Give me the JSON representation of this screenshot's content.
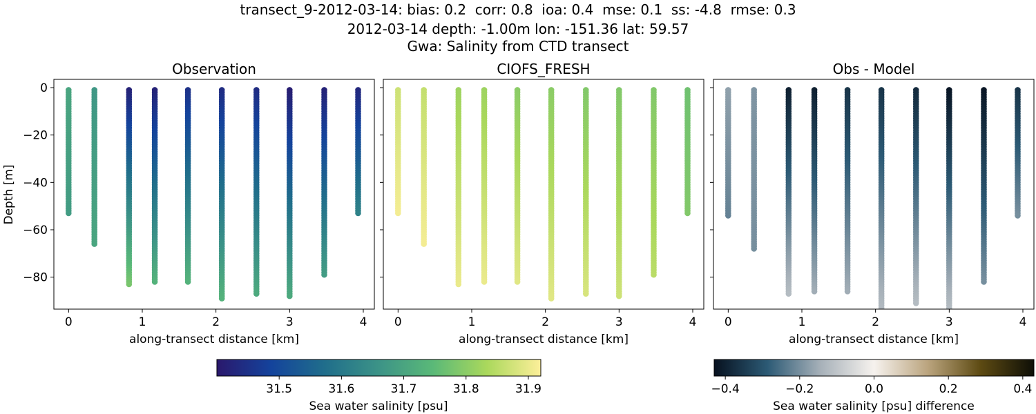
{
  "figure": {
    "title_lines": [
      "transect_9-2012-03-14: bias: 0.2  corr: 0.8  ioa: 0.4  mse: 0.1  ss: -4.8  rmse: 0.3",
      "2012-03-14 depth: -1.00m lon: -151.36 lat: 59.57",
      "Gwa: Salinity from CTD transect"
    ]
  },
  "chart_data": [
    {
      "type": "scatter",
      "title": "Observation",
      "xlabel": "along-transect distance [km]",
      "ylabel": "Depth [m]",
      "xlim": [
        -0.2,
        4.15
      ],
      "ylim": [
        -93.5,
        3.5
      ],
      "xticks": [
        0,
        1,
        2,
        3,
        4
      ],
      "yticks": [
        0,
        -20,
        -40,
        -60,
        -80
      ],
      "colormap": "haline",
      "clim": [
        31.4,
        31.92
      ],
      "stations": [
        {
          "x": 0.0,
          "bottom": -53,
          "top_value": 31.7,
          "bottom_value": 31.68
        },
        {
          "x": 0.35,
          "bottom": -66,
          "top_value": 31.67,
          "bottom_value": 31.7
        },
        {
          "x": 0.82,
          "bottom": -83,
          "top_value": 31.42,
          "bottom_value": 31.78
        },
        {
          "x": 1.17,
          "bottom": -82,
          "top_value": 31.42,
          "bottom_value": 31.73
        },
        {
          "x": 1.62,
          "bottom": -82,
          "top_value": 31.45,
          "bottom_value": 31.73
        },
        {
          "x": 2.08,
          "bottom": -89,
          "top_value": 31.44,
          "bottom_value": 31.73
        },
        {
          "x": 2.55,
          "bottom": -87,
          "top_value": 31.44,
          "bottom_value": 31.71
        },
        {
          "x": 3.0,
          "bottom": -88,
          "top_value": 31.41,
          "bottom_value": 31.71
        },
        {
          "x": 3.47,
          "bottom": -79,
          "top_value": 31.42,
          "bottom_value": 31.68
        },
        {
          "x": 3.93,
          "bottom": -53,
          "top_value": 31.43,
          "bottom_value": 31.62
        }
      ]
    },
    {
      "type": "scatter",
      "title": "CIOFS_FRESH",
      "xlabel": "along-transect distance [km]",
      "ylabel": "",
      "xlim": [
        -0.2,
        4.15
      ],
      "ylim": [
        -93.5,
        3.5
      ],
      "xticks": [
        0,
        1,
        2,
        3,
        4
      ],
      "yticks": [
        0,
        -20,
        -40,
        -60,
        -80
      ],
      "colormap": "haline",
      "clim": [
        31.4,
        31.92
      ],
      "stations": [
        {
          "x": 0.0,
          "bottom": -53,
          "top_value": 31.87,
          "bottom_value": 31.91
        },
        {
          "x": 0.35,
          "bottom": -66,
          "top_value": 31.86,
          "bottom_value": 31.91
        },
        {
          "x": 0.82,
          "bottom": -83,
          "top_value": 31.82,
          "bottom_value": 31.9
        },
        {
          "x": 1.17,
          "bottom": -82,
          "top_value": 31.82,
          "bottom_value": 31.9
        },
        {
          "x": 1.62,
          "bottom": -82,
          "top_value": 31.8,
          "bottom_value": 31.89
        },
        {
          "x": 2.08,
          "bottom": -89,
          "top_value": 31.8,
          "bottom_value": 31.89
        },
        {
          "x": 2.55,
          "bottom": -87,
          "top_value": 31.79,
          "bottom_value": 31.88
        },
        {
          "x": 3.0,
          "bottom": -88,
          "top_value": 31.79,
          "bottom_value": 31.87
        },
        {
          "x": 3.47,
          "bottom": -79,
          "top_value": 31.79,
          "bottom_value": 31.85
        },
        {
          "x": 3.93,
          "bottom": -53,
          "top_value": 31.77,
          "bottom_value": 31.79
        }
      ]
    },
    {
      "type": "scatter",
      "title": "Obs - Model",
      "xlabel": "along-transect distance [km]",
      "ylabel": "",
      "xlim": [
        -0.2,
        4.15
      ],
      "ylim": [
        -93.5,
        3.5
      ],
      "xticks": [
        0,
        1,
        2,
        3,
        4
      ],
      "yticks": [
        0,
        -20,
        -40,
        -60,
        -80
      ],
      "colormap": "diff",
      "clim": [
        -0.43,
        0.43
      ],
      "stations": [
        {
          "x": 0.0,
          "bottom": -54,
          "top_value": -0.17,
          "bottom_value": -0.22
        },
        {
          "x": 0.35,
          "bottom": -68,
          "top_value": -0.19,
          "bottom_value": -0.2
        },
        {
          "x": 0.82,
          "bottom": -87,
          "top_value": -0.4,
          "bottom_value": -0.12
        },
        {
          "x": 1.17,
          "bottom": -86,
          "top_value": -0.4,
          "bottom_value": -0.15
        },
        {
          "x": 1.62,
          "bottom": -86,
          "top_value": -0.36,
          "bottom_value": -0.15
        },
        {
          "x": 2.08,
          "bottom": -95,
          "top_value": -0.36,
          "bottom_value": -0.12
        },
        {
          "x": 2.55,
          "bottom": -91,
          "top_value": -0.38,
          "bottom_value": -0.12
        },
        {
          "x": 3.0,
          "bottom": -93,
          "top_value": -0.42,
          "bottom_value": -0.12
        },
        {
          "x": 3.47,
          "bottom": -82,
          "top_value": -0.42,
          "bottom_value": -0.2
        },
        {
          "x": 3.93,
          "bottom": -54,
          "top_value": -0.36,
          "bottom_value": -0.2
        }
      ]
    }
  ],
  "colorbars": [
    {
      "label": "Sea water salinity [psu]",
      "colormap": "haline",
      "range": [
        31.4,
        31.92
      ],
      "ticks": [
        "31.5",
        "31.6",
        "31.7",
        "31.8",
        "31.9"
      ],
      "tick_values": [
        31.5,
        31.6,
        31.7,
        31.8,
        31.9
      ]
    },
    {
      "label": "Sea water salinity [psu] difference",
      "colormap": "diff",
      "range": [
        -0.43,
        0.43
      ],
      "ticks": [
        "−0.4",
        "−0.2",
        "0.0",
        "0.2",
        "0.4"
      ],
      "tick_values": [
        -0.4,
        -0.2,
        0.0,
        0.2,
        0.4
      ]
    }
  ],
  "colors": {
    "haline": [
      "#2a186c",
      "#14439c",
      "#206e8b",
      "#3c9387",
      "#5ab978",
      "#aad85c",
      "#fdef9a"
    ],
    "diff": [
      "#07111f",
      "#2c5a75",
      "#a7b1b9",
      "#f6f2ee",
      "#bba57f",
      "#5d4a12",
      "#0e0f07"
    ]
  }
}
